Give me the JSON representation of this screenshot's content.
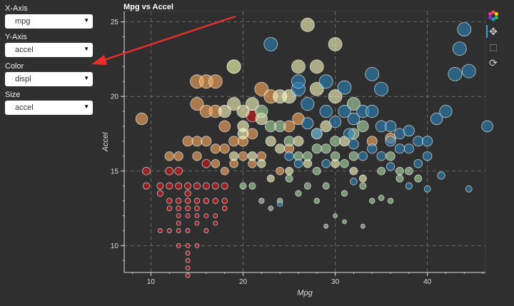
{
  "controls": [
    {
      "label": "X-Axis",
      "value": "mpg"
    },
    {
      "label": "Y-Axis",
      "value": "accel"
    },
    {
      "label": "Color",
      "value": "displ"
    },
    {
      "label": "Size",
      "value": "accel"
    }
  ],
  "toolbar": {
    "logo": "bokeh-logo-icon",
    "tools": [
      "pan-icon",
      "box-zoom-icon",
      "reset-icon"
    ]
  },
  "palette": [
    "#2b83ba",
    "#abdda4",
    "#ffffbf",
    "#fdae61",
    "#d7191c"
  ],
  "chart_data": {
    "type": "scatter",
    "title": "Mpg vs Accel",
    "xlabel": "Mpg",
    "ylabel": "Accel",
    "xlim": [
      7.1,
      46.3
    ],
    "ylim": [
      8.2,
      25.7
    ],
    "xticks": [
      10,
      20,
      30,
      40
    ],
    "yticks": [
      10,
      15,
      20,
      25
    ],
    "grid": true,
    "color_field": "displ (binned, 0=small .. 4=large)",
    "size_field": "accel",
    "points_mpg_accel_displbin": [
      [
        9.5,
        15,
        4
      ],
      [
        9.5,
        14,
        4
      ],
      [
        11,
        14,
        4
      ],
      [
        11,
        13.5,
        4
      ],
      [
        12,
        14,
        4
      ],
      [
        12,
        13,
        4
      ],
      [
        12,
        12.5,
        4
      ],
      [
        12,
        11,
        4
      ],
      [
        13,
        14,
        4
      ],
      [
        13,
        13,
        4
      ],
      [
        13,
        12.5,
        4
      ],
      [
        13,
        12,
        4
      ],
      [
        13,
        11.5,
        4
      ],
      [
        13,
        11,
        4
      ],
      [
        13,
        10,
        4
      ],
      [
        14,
        14,
        4
      ],
      [
        14,
        13.5,
        4
      ],
      [
        14,
        13,
        4
      ],
      [
        14,
        12.5,
        4
      ],
      [
        14,
        12,
        4
      ],
      [
        14,
        11,
        4
      ],
      [
        14,
        10,
        4
      ],
      [
        14,
        9.5,
        4
      ],
      [
        14,
        9,
        4
      ],
      [
        14,
        8.5,
        4
      ],
      [
        14,
        8,
        4
      ],
      [
        15,
        13,
        4
      ],
      [
        15,
        12.5,
        4
      ],
      [
        15,
        12,
        4
      ],
      [
        15,
        11.5,
        4
      ],
      [
        15,
        10,
        4
      ],
      [
        15,
        14,
        4
      ],
      [
        16,
        13,
        4
      ],
      [
        16,
        12,
        4
      ],
      [
        16,
        11,
        4
      ],
      [
        16,
        14,
        4
      ],
      [
        17,
        13,
        4
      ],
      [
        17,
        12,
        4
      ],
      [
        17,
        11.5,
        4
      ],
      [
        17,
        14,
        4
      ],
      [
        18,
        13,
        4
      ],
      [
        18,
        12.5,
        4
      ],
      [
        18,
        14,
        4
      ],
      [
        11,
        11,
        4
      ],
      [
        12,
        15,
        4
      ],
      [
        13,
        15,
        4
      ],
      [
        21,
        18.7,
        4
      ],
      [
        16,
        15.5,
        4
      ],
      [
        9,
        18.5,
        3
      ],
      [
        15,
        21,
        3
      ],
      [
        16,
        21,
        3
      ],
      [
        17,
        21,
        3
      ],
      [
        19,
        22,
        3
      ],
      [
        22,
        20.5,
        3
      ],
      [
        23,
        20,
        3
      ],
      [
        15,
        19.5,
        3
      ],
      [
        16,
        19,
        3
      ],
      [
        17,
        19,
        3
      ],
      [
        18,
        18,
        3
      ],
      [
        15,
        17,
        3
      ],
      [
        16,
        17,
        3
      ],
      [
        17,
        16.5,
        3
      ],
      [
        18,
        16.5,
        3
      ],
      [
        19,
        17,
        3
      ],
      [
        20,
        17,
        3
      ],
      [
        12,
        16,
        3
      ],
      [
        13,
        16,
        3
      ],
      [
        14,
        17,
        3
      ],
      [
        15,
        16,
        3
      ],
      [
        17,
        15.5,
        3
      ],
      [
        18,
        15,
        3
      ],
      [
        19,
        15.5,
        3
      ],
      [
        20,
        16,
        3
      ],
      [
        21,
        15.5,
        3
      ],
      [
        22,
        16,
        3
      ],
      [
        21,
        17.5,
        3
      ],
      [
        25,
        18,
        3
      ],
      [
        26,
        18.5,
        3
      ],
      [
        24,
        15,
        3
      ],
      [
        25,
        16.5,
        3
      ],
      [
        34,
        17,
        3
      ],
      [
        36,
        17.2,
        3
      ],
      [
        27,
        24.8,
        2
      ],
      [
        30,
        23.5,
        2
      ],
      [
        28,
        22,
        2
      ],
      [
        26,
        22,
        2
      ],
      [
        30,
        20,
        2
      ],
      [
        28,
        20.5,
        2
      ],
      [
        25,
        20,
        2
      ],
      [
        24,
        20,
        2
      ],
      [
        21,
        19.5,
        2
      ],
      [
        20,
        19,
        2
      ],
      [
        22,
        18.5,
        2
      ],
      [
        19,
        19.5,
        2
      ],
      [
        18,
        19,
        2
      ],
      [
        23,
        17,
        2
      ],
      [
        24,
        16.5,
        2
      ],
      [
        20,
        17.5,
        2
      ],
      [
        21,
        16,
        2
      ],
      [
        19,
        16,
        2
      ],
      [
        22,
        15.5,
        2
      ],
      [
        25,
        15,
        2
      ],
      [
        27,
        15.5,
        2
      ],
      [
        23,
        14.5,
        2
      ],
      [
        26,
        17,
        2
      ],
      [
        28,
        17.5,
        2
      ],
      [
        29,
        18,
        2
      ],
      [
        30,
        15.5,
        2
      ],
      [
        32,
        15,
        2
      ],
      [
        33,
        14.5,
        2
      ],
      [
        31,
        17,
        2
      ],
      [
        20,
        18,
        2
      ],
      [
        19,
        22,
        1
      ],
      [
        22,
        19,
        1
      ],
      [
        23,
        18,
        1
      ],
      [
        24,
        18,
        1
      ],
      [
        25,
        17,
        1
      ],
      [
        26,
        16,
        1
      ],
      [
        27,
        16,
        1
      ],
      [
        28,
        15,
        1
      ],
      [
        29,
        16.5,
        1
      ],
      [
        30,
        16,
        1
      ],
      [
        31,
        15.5,
        1
      ],
      [
        32,
        16,
        1
      ],
      [
        33,
        14,
        1
      ],
      [
        34,
        13,
        1
      ],
      [
        35,
        15,
        1
      ],
      [
        36,
        16,
        1
      ],
      [
        37,
        14.5,
        1
      ],
      [
        38,
        15,
        1
      ],
      [
        39,
        14.5,
        1
      ],
      [
        31,
        13.5,
        1
      ],
      [
        29,
        14,
        1
      ],
      [
        27,
        14,
        1
      ],
      [
        25,
        14.5,
        1
      ],
      [
        24,
        13,
        1
      ],
      [
        26,
        13.5,
        1
      ],
      [
        28,
        13,
        1
      ],
      [
        30,
        12,
        1
      ],
      [
        29,
        11.3,
        1
      ],
      [
        33,
        11.3,
        1
      ],
      [
        31,
        11.6,
        1
      ],
      [
        35,
        13.2,
        1
      ],
      [
        36,
        13,
        1
      ],
      [
        20,
        14,
        1
      ],
      [
        21,
        14,
        1
      ],
      [
        22,
        13,
        1
      ],
      [
        23,
        12.5,
        1
      ],
      [
        32,
        17.5,
        1
      ],
      [
        33,
        18,
        1
      ],
      [
        30,
        17,
        1
      ],
      [
        28,
        16.5,
        1
      ],
      [
        37,
        15,
        1
      ],
      [
        32,
        19.5,
        1
      ],
      [
        23,
        23.5,
        0
      ],
      [
        26,
        20.5,
        0
      ],
      [
        27,
        19.5,
        0
      ],
      [
        29,
        19,
        0
      ],
      [
        31,
        19,
        0
      ],
      [
        32,
        18.5,
        0
      ],
      [
        33,
        19,
        0
      ],
      [
        34,
        19,
        0
      ],
      [
        35,
        18,
        0
      ],
      [
        36,
        17,
        0
      ],
      [
        37,
        17.5,
        0
      ],
      [
        38,
        16.5,
        0
      ],
      [
        39,
        17,
        0
      ],
      [
        40,
        16,
        0
      ],
      [
        41,
        18.5,
        0
      ],
      [
        42,
        19,
        0
      ],
      [
        43,
        21.5,
        0
      ],
      [
        44,
        24.5,
        0
      ],
      [
        44.5,
        21.7,
        0
      ],
      [
        43.5,
        23.2,
        0
      ],
      [
        46.5,
        18,
        0
      ],
      [
        41.5,
        14.7,
        0
      ],
      [
        44.5,
        13.8,
        0
      ],
      [
        34,
        21.5,
        0
      ],
      [
        31,
        20.6,
        0
      ],
      [
        35,
        20.5,
        0
      ],
      [
        29,
        21,
        0
      ],
      [
        27,
        18.2,
        0
      ],
      [
        28,
        17.5,
        0
      ],
      [
        31.5,
        17.5,
        0
      ],
      [
        34,
        16.5,
        0
      ],
      [
        36,
        15.3,
        0
      ],
      [
        38,
        17.7,
        0
      ],
      [
        40,
        17,
        0
      ],
      [
        39,
        15.5,
        0
      ],
      [
        30,
        18.3,
        0
      ],
      [
        32,
        16.8,
        0
      ],
      [
        33,
        16,
        0
      ],
      [
        26,
        15.5,
        0
      ],
      [
        25,
        16,
        0
      ],
      [
        29,
        15.5,
        0
      ],
      [
        37,
        16.5,
        0
      ],
      [
        35,
        16,
        0
      ],
      [
        36,
        18,
        0
      ],
      [
        32,
        14.3,
        0
      ],
      [
        38,
        14,
        0
      ],
      [
        24,
        12.8,
        0
      ],
      [
        26,
        21,
        0
      ],
      [
        40,
        13.8,
        0
      ]
    ]
  }
}
